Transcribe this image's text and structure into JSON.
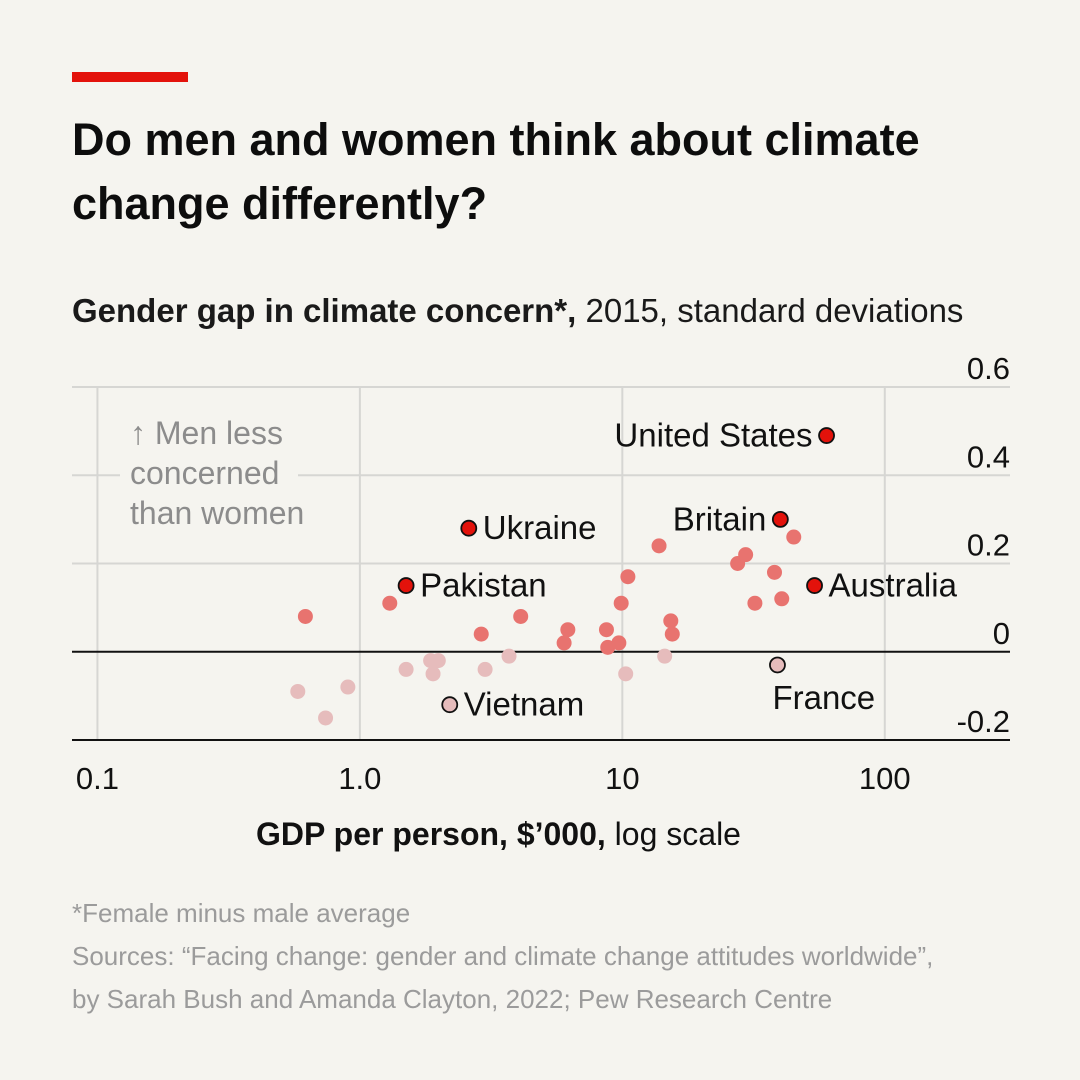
{
  "title": "Do men and women think about climate change differently?",
  "subtitle": {
    "bold": "Gender gap in climate concern*,",
    "rest": " 2015, standard deviations"
  },
  "annotation": [
    "↑ Men less",
    "concerned",
    "than women"
  ],
  "x_axis_label": {
    "bold": "GDP per person, $’000,",
    "rest": " log scale"
  },
  "footnote": "*Female minus male average",
  "sources": [
    "Sources: “Facing change: gender and climate change attitudes worldwide”,",
    "by Sarah Bush and Amanda Clayton, 2022; Pew Research Centre"
  ],
  "colors": {
    "accent": "#e3120b",
    "highlight": "#e3120b",
    "positive": "#e8736f",
    "negative": "#e6bcbc",
    "grid": "#d6d6d3"
  },
  "chart_data": {
    "type": "scatter",
    "xscale": "log",
    "xlim": [
      0.08,
      300
    ],
    "ylim": [
      -0.2,
      0.6
    ],
    "xticks": [
      {
        "value": 0.1,
        "label": "0.1"
      },
      {
        "value": 1,
        "label": "1.0"
      },
      {
        "value": 10,
        "label": "10"
      },
      {
        "value": 100,
        "label": "100"
      }
    ],
    "yticks": [
      {
        "value": 0.6,
        "label": "0.6"
      },
      {
        "value": 0.4,
        "label": "0.4"
      },
      {
        "value": 0.2,
        "label": "0.2"
      },
      {
        "value": 0,
        "label": "0"
      },
      {
        "value": -0.2,
        "label": "-0.2"
      }
    ],
    "xlabel": "GDP per person, $’000, log scale",
    "ylabel": "Gender gap in climate concern*, 2015, standard deviations",
    "labelled_points": [
      {
        "name": "United States",
        "x": 60,
        "y": 0.49,
        "label_pos": "left"
      },
      {
        "name": "Ukraine",
        "x": 2.6,
        "y": 0.28,
        "label_pos": "right"
      },
      {
        "name": "Britain",
        "x": 40,
        "y": 0.3,
        "label_pos": "left"
      },
      {
        "name": "Pakistan",
        "x": 1.5,
        "y": 0.15,
        "label_pos": "right"
      },
      {
        "name": "Australia",
        "x": 54,
        "y": 0.15,
        "label_pos": "right"
      },
      {
        "name": "France",
        "x": 39,
        "y": -0.03,
        "label_pos": "below"
      },
      {
        "name": "Vietnam",
        "x": 2.2,
        "y": -0.12,
        "label_pos": "right"
      }
    ],
    "points": [
      {
        "x": 0.62,
        "y": 0.08
      },
      {
        "x": 1.3,
        "y": 0.11
      },
      {
        "x": 2.9,
        "y": 0.04
      },
      {
        "x": 4.1,
        "y": 0.08
      },
      {
        "x": 6.2,
        "y": 0.05
      },
      {
        "x": 6.0,
        "y": 0.02
      },
      {
        "x": 8.7,
        "y": 0.05
      },
      {
        "x": 8.8,
        "y": 0.01
      },
      {
        "x": 9.7,
        "y": 0.02
      },
      {
        "x": 9.9,
        "y": 0.11
      },
      {
        "x": 10.5,
        "y": 0.17
      },
      {
        "x": 13.8,
        "y": 0.24
      },
      {
        "x": 15.3,
        "y": 0.07
      },
      {
        "x": 15.5,
        "y": 0.04
      },
      {
        "x": 27.5,
        "y": 0.2
      },
      {
        "x": 29.5,
        "y": 0.22
      },
      {
        "x": 32,
        "y": 0.11
      },
      {
        "x": 38,
        "y": 0.18
      },
      {
        "x": 40.5,
        "y": 0.12
      },
      {
        "x": 45,
        "y": 0.26
      },
      {
        "x": 0.58,
        "y": -0.09
      },
      {
        "x": 0.74,
        "y": -0.15
      },
      {
        "x": 0.9,
        "y": -0.08
      },
      {
        "x": 1.5,
        "y": -0.04
      },
      {
        "x": 1.86,
        "y": -0.02
      },
      {
        "x": 1.99,
        "y": -0.02
      },
      {
        "x": 1.9,
        "y": -0.05
      },
      {
        "x": 3.0,
        "y": -0.04
      },
      {
        "x": 3.7,
        "y": -0.01
      },
      {
        "x": 10.3,
        "y": -0.05
      },
      {
        "x": 14.5,
        "y": -0.01
      }
    ]
  }
}
